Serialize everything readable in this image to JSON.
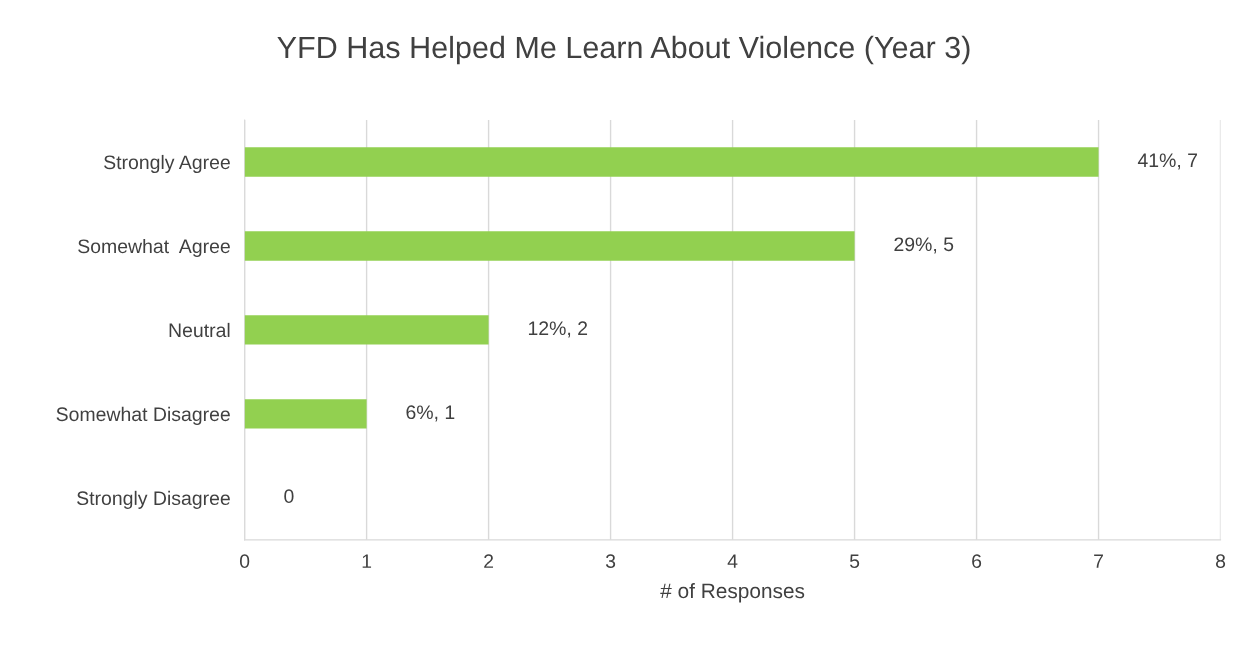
{
  "chart_data": {
    "type": "bar",
    "orientation": "horizontal",
    "title": "YFD Has Helped Me Learn About Violence (Year 3)",
    "xlabel": "# of Responses",
    "categories": [
      "Strongly Agree",
      "Somewhat  Agree",
      "Neutral",
      "Somewhat Disagree",
      "Strongly Disagree"
    ],
    "values": [
      7,
      5,
      2,
      1,
      0
    ],
    "value_labels": [
      "41%, 7",
      "29%, 5",
      "12%, 2",
      "6%, 1",
      "0"
    ],
    "color": "#92d050",
    "xlim": [
      0,
      8
    ],
    "xticks": [
      0,
      1,
      2,
      3,
      4,
      5,
      6,
      7,
      8
    ],
    "grid": "x",
    "legend": false
  }
}
